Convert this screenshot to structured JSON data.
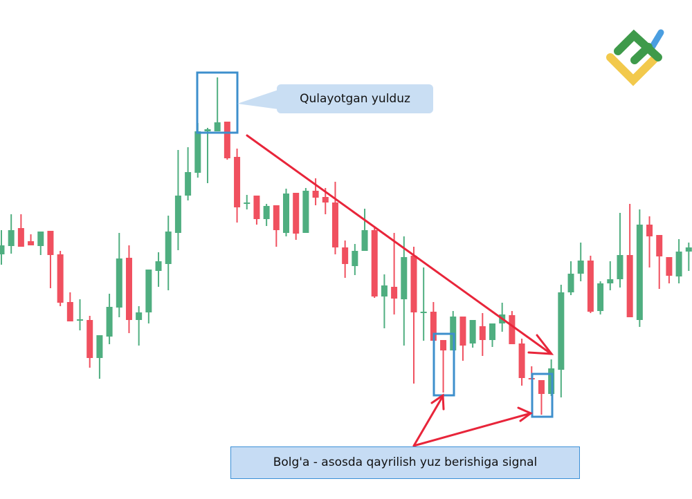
{
  "chart_data": {
    "type": "candlestick",
    "title": "",
    "xlabel": "",
    "ylabel": "",
    "grid": false,
    "colors": {
      "up": "#4fae80",
      "down": "#f0505f",
      "highlight_box": "#3d8fcc",
      "arrow": "#e8253a"
    },
    "ohlc_fields": [
      "open",
      "high",
      "low",
      "close"
    ],
    "candles": [
      [
        232,
        267,
        217,
        245
      ],
      [
        244,
        290,
        233,
        267
      ],
      [
        270,
        290,
        243,
        243
      ],
      [
        251,
        261,
        245,
        245
      ],
      [
        244,
        265,
        231,
        265
      ],
      [
        266,
        266,
        183,
        231
      ],
      [
        232,
        237,
        157,
        162
      ],
      [
        163,
        177,
        135,
        135
      ],
      [
        136,
        167,
        122,
        138
      ],
      [
        137,
        143,
        68,
        82
      ],
      [
        82,
        115,
        52,
        115
      ],
      [
        113,
        175,
        102,
        156
      ],
      [
        155,
        263,
        141,
        226
      ],
      [
        227,
        245,
        118,
        137
      ],
      [
        137,
        157,
        100,
        148
      ],
      [
        148,
        210,
        132,
        210
      ],
      [
        208,
        235,
        185,
        222
      ],
      [
        218,
        288,
        180,
        265
      ],
      [
        263,
        383,
        238,
        317
      ],
      [
        317,
        387,
        310,
        351
      ],
      [
        350,
        422,
        343,
        410
      ],
      [
        410,
        415,
        335,
        413
      ],
      [
        410,
        488,
        410,
        423
      ],
      [
        424,
        424,
        369,
        371
      ],
      [
        373,
        385,
        278,
        300
      ],
      [
        305,
        318,
        297,
        307
      ],
      [
        317,
        317,
        275,
        283
      ],
      [
        283,
        305,
        273,
        302
      ],
      [
        303,
        303,
        243,
        267
      ],
      [
        263,
        327,
        258,
        320
      ],
      [
        321,
        321,
        253,
        262
      ],
      [
        263,
        328,
        263,
        324
      ],
      [
        324,
        342,
        303,
        314
      ],
      [
        315,
        328,
        290,
        307
      ],
      [
        307,
        337,
        232,
        242
      ],
      [
        242,
        252,
        198,
        218
      ],
      [
        215,
        247,
        202,
        237
      ],
      [
        237,
        298,
        237,
        267
      ],
      [
        267,
        270,
        169,
        171
      ],
      [
        171,
        203,
        125,
        187
      ],
      [
        185,
        263,
        145,
        168
      ],
      [
        167,
        258,
        100,
        228
      ],
      [
        230,
        243,
        45,
        148
      ],
      [
        148,
        213,
        107,
        149
      ],
      [
        149,
        163,
        107,
        107
      ],
      [
        108,
        108,
        32,
        93
      ],
      [
        93,
        150,
        93,
        142
      ],
      [
        142,
        142,
        78,
        100
      ],
      [
        103,
        137,
        97,
        137
      ],
      [
        128,
        147,
        85,
        108
      ],
      [
        108,
        132,
        98,
        132
      ],
      [
        132,
        162,
        120,
        145
      ],
      [
        144,
        150,
        102,
        102
      ],
      [
        103,
        110,
        42,
        53
      ],
      [
        53,
        70,
        51,
        51
      ],
      [
        50,
        50,
        0,
        30
      ],
      [
        30,
        80,
        27,
        67
      ],
      [
        65,
        188,
        25,
        177
      ],
      [
        177,
        222,
        173,
        204
      ],
      [
        204,
        249,
        193,
        223
      ],
      [
        223,
        230,
        147,
        149
      ],
      [
        150,
        193,
        145,
        190
      ],
      [
        190,
        222,
        180,
        196
      ],
      [
        196,
        292,
        184,
        231
      ],
      [
        231,
        305,
        141,
        141
      ],
      [
        137,
        297,
        127,
        275
      ],
      [
        275,
        287,
        213,
        258
      ],
      [
        260,
        260,
        182,
        229
      ],
      [
        228,
        228,
        190,
        201
      ],
      [
        200,
        254,
        190,
        236
      ],
      [
        236,
        249,
        208,
        242
      ]
    ],
    "annotations": [
      {
        "text": "Qulayotgan yulduz",
        "pattern_candles": [
          22,
          23
        ]
      },
      {
        "text": "Bolg'a - asosda qayrilish yuz berishiga signal",
        "pattern_candles": [
          46,
          56
        ]
      }
    ],
    "trend_arrow": {
      "from_candle": 25,
      "to_candle": 57,
      "direction": "down"
    }
  },
  "logo": {
    "name": "brand-logo",
    "colors": [
      "#3e9a4a",
      "#f2c94c",
      "#4a9ee0"
    ]
  }
}
